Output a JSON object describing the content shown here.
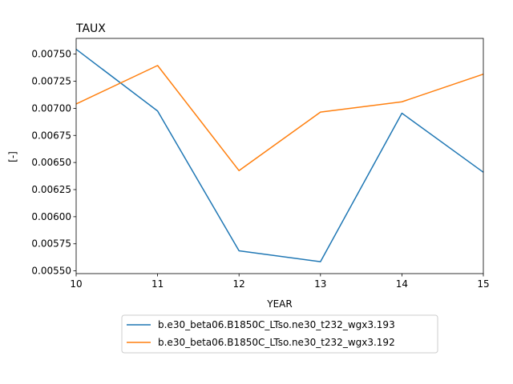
{
  "chart_data": {
    "type": "line",
    "title": "TAUX",
    "xlabel": "YEAR",
    "ylabel": "[-]",
    "x": [
      10,
      11,
      12,
      13,
      14,
      15
    ],
    "xlim": [
      10,
      15
    ],
    "ylim": [
      0.005475,
      0.007645
    ],
    "xticks": [
      "10",
      "11",
      "12",
      "13",
      "14",
      "15"
    ],
    "yticks": [
      "0.00550",
      "0.00575",
      "0.00600",
      "0.00625",
      "0.00650",
      "0.00675",
      "0.00700",
      "0.00725",
      "0.00750"
    ],
    "grid": false,
    "legend_position": "bottom-center, below plot",
    "series": [
      {
        "name": "b.e30_beta06.B1850C_LTso.ne30_t232_wgx3.193",
        "color": "#1f77b4",
        "values": [
          0.007545,
          0.006975,
          0.005685,
          0.005585,
          0.006955,
          0.00641
        ]
      },
      {
        "name": "b.e30_beta06.B1850C_LTso.ne30_t232_wgx3.192",
        "color": "#ff7f0e",
        "values": [
          0.00704,
          0.007395,
          0.006425,
          0.006965,
          0.00706,
          0.007315
        ]
      }
    ]
  }
}
